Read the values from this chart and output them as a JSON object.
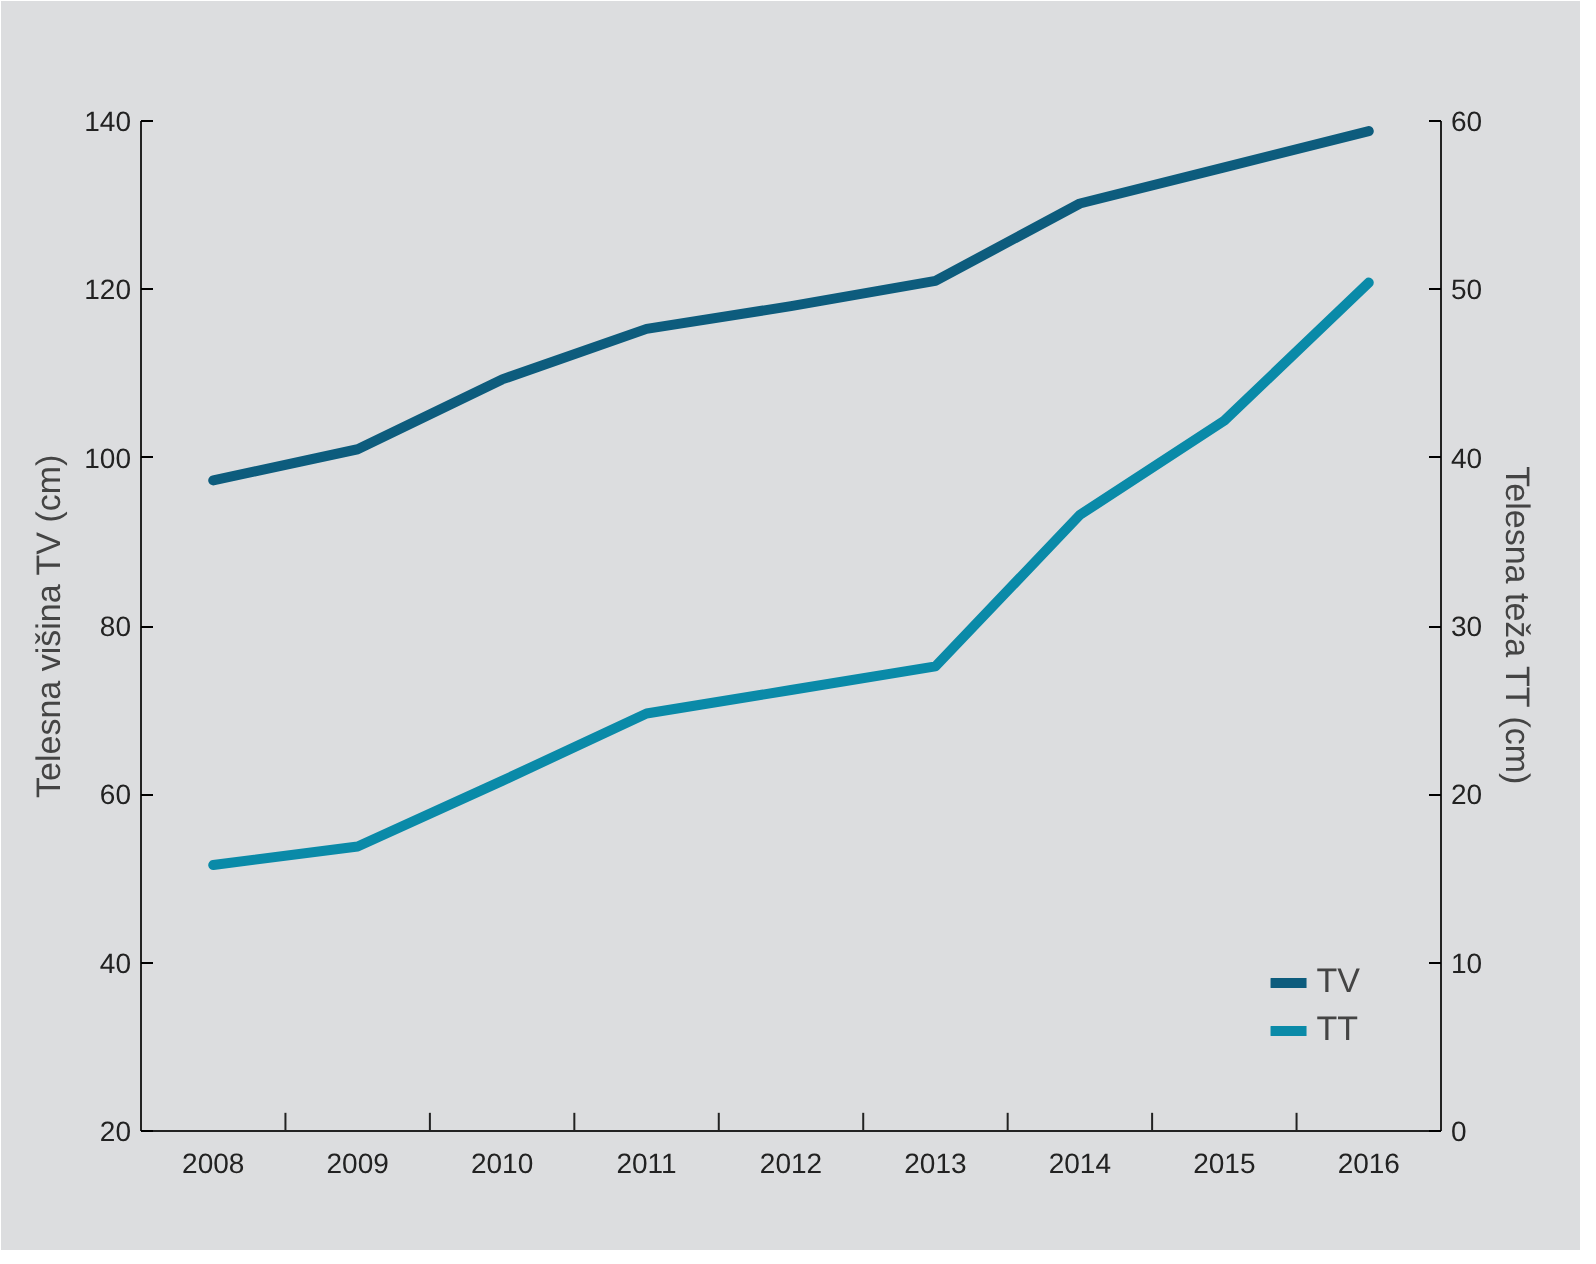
{
  "chart_data": {
    "type": "line",
    "xlabel": null,
    "ylabel": "Telesna višina TV (cm)",
    "y2label": "Telesna teža TT (cm)",
    "categories": [
      "2008",
      "2009",
      "2010",
      "2011",
      "2012",
      "2013",
      "2014",
      "2015",
      "2016"
    ],
    "series": [
      {
        "name": "TV",
        "color": "#0d5c7d",
        "values": [
          97.3,
          101,
          109.3,
          115.3,
          118,
          121,
          130.2,
          134.5,
          138.8
        ]
      },
      {
        "name": "TT",
        "color": "#0a8aa8",
        "axis": "y2",
        "values": [
          15.8,
          16.9,
          20.8,
          24.8,
          26.2,
          27.6,
          36.6,
          42.2,
          50.4
        ]
      }
    ],
    "ylim": [
      20,
      140
    ],
    "yticks": [
      20,
      40,
      60,
      80,
      100,
      120,
      140
    ],
    "y2lim": [
      0,
      60
    ],
    "y2ticks": [
      0,
      10,
      20,
      30,
      40,
      50,
      60
    ],
    "grid": false,
    "legend": "bottom right",
    "marker": "none",
    "line_style": "solid"
  }
}
